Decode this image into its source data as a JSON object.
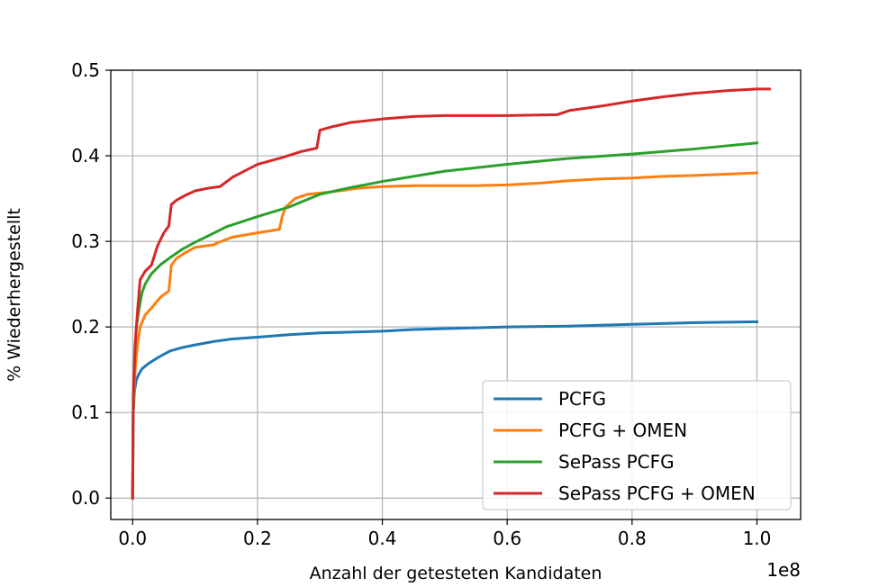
{
  "chart_data": {
    "type": "line",
    "title": "",
    "xlabel": "Anzahl der getesteten Kandidaten",
    "ylabel": "% Wiederhergestellt",
    "x_offset_label": "1e8",
    "xlim": [
      -0.035,
      1.07
    ],
    "ylim": [
      -0.025,
      0.5
    ],
    "x_ticks": [
      0.0,
      0.2,
      0.4,
      0.6,
      0.8,
      1.0
    ],
    "x_tick_labels": [
      "0.0",
      "0.2",
      "0.4",
      "0.6",
      "0.8",
      "1.0"
    ],
    "y_ticks": [
      0.0,
      0.1,
      0.2,
      0.3,
      0.4,
      0.5
    ],
    "y_tick_labels": [
      "0.0",
      "0.1",
      "0.2",
      "0.3",
      "0.4",
      "0.5"
    ],
    "grid": true,
    "legend_position": "bottom-right",
    "series": [
      {
        "name": "PCFG",
        "color": "#1f77b4",
        "points": [
          [
            0.0,
            0.0
          ],
          [
            0.0005,
            0.06
          ],
          [
            0.001,
            0.1
          ],
          [
            0.003,
            0.125
          ],
          [
            0.006,
            0.138
          ],
          [
            0.01,
            0.145
          ],
          [
            0.015,
            0.151
          ],
          [
            0.025,
            0.157
          ],
          [
            0.04,
            0.164
          ],
          [
            0.06,
            0.172
          ],
          [
            0.08,
            0.176
          ],
          [
            0.1,
            0.179
          ],
          [
            0.13,
            0.183
          ],
          [
            0.16,
            0.186
          ],
          [
            0.2,
            0.188
          ],
          [
            0.25,
            0.191
          ],
          [
            0.3,
            0.193
          ],
          [
            0.35,
            0.194
          ],
          [
            0.4,
            0.195
          ],
          [
            0.45,
            0.197
          ],
          [
            0.5,
            0.198
          ],
          [
            0.6,
            0.2
          ],
          [
            0.7,
            0.201
          ],
          [
            0.8,
            0.203
          ],
          [
            0.9,
            0.205
          ],
          [
            1.0,
            0.206
          ]
        ]
      },
      {
        "name": "PCFG + OMEN",
        "color": "#ff7f0e",
        "points": [
          [
            0.0,
            0.0
          ],
          [
            0.001,
            0.1
          ],
          [
            0.004,
            0.15
          ],
          [
            0.008,
            0.18
          ],
          [
            0.012,
            0.2
          ],
          [
            0.02,
            0.214
          ],
          [
            0.03,
            0.222
          ],
          [
            0.045,
            0.235
          ],
          [
            0.058,
            0.242
          ],
          [
            0.062,
            0.272
          ],
          [
            0.07,
            0.28
          ],
          [
            0.085,
            0.287
          ],
          [
            0.1,
            0.293
          ],
          [
            0.13,
            0.296
          ],
          [
            0.135,
            0.298
          ],
          [
            0.16,
            0.305
          ],
          [
            0.2,
            0.31
          ],
          [
            0.235,
            0.314
          ],
          [
            0.24,
            0.33
          ],
          [
            0.245,
            0.34
          ],
          [
            0.26,
            0.35
          ],
          [
            0.28,
            0.355
          ],
          [
            0.32,
            0.358
          ],
          [
            0.36,
            0.362
          ],
          [
            0.4,
            0.364
          ],
          [
            0.45,
            0.365
          ],
          [
            0.5,
            0.365
          ],
          [
            0.55,
            0.365
          ],
          [
            0.6,
            0.366
          ],
          [
            0.65,
            0.368
          ],
          [
            0.7,
            0.371
          ],
          [
            0.75,
            0.373
          ],
          [
            0.8,
            0.374
          ],
          [
            0.85,
            0.376
          ],
          [
            0.9,
            0.377
          ],
          [
            1.0,
            0.38
          ]
        ]
      },
      {
        "name": "SePass PCFG",
        "color": "#2ca02c",
        "points": [
          [
            0.0,
            0.0
          ],
          [
            0.001,
            0.1
          ],
          [
            0.003,
            0.16
          ],
          [
            0.006,
            0.2
          ],
          [
            0.01,
            0.22
          ],
          [
            0.015,
            0.24
          ],
          [
            0.02,
            0.25
          ],
          [
            0.03,
            0.262
          ],
          [
            0.045,
            0.273
          ],
          [
            0.06,
            0.281
          ],
          [
            0.08,
            0.291
          ],
          [
            0.1,
            0.299
          ],
          [
            0.12,
            0.306
          ],
          [
            0.15,
            0.317
          ],
          [
            0.2,
            0.329
          ],
          [
            0.25,
            0.34
          ],
          [
            0.3,
            0.355
          ],
          [
            0.35,
            0.363
          ],
          [
            0.4,
            0.37
          ],
          [
            0.45,
            0.376
          ],
          [
            0.5,
            0.382
          ],
          [
            0.6,
            0.39
          ],
          [
            0.7,
            0.397
          ],
          [
            0.8,
            0.402
          ],
          [
            0.9,
            0.408
          ],
          [
            1.0,
            0.415
          ]
        ]
      },
      {
        "name": "SePass PCFG + OMEN",
        "color": "#d62728",
        "points": [
          [
            0.0,
            0.0
          ],
          [
            0.001,
            0.12
          ],
          [
            0.004,
            0.18
          ],
          [
            0.008,
            0.22
          ],
          [
            0.012,
            0.255
          ],
          [
            0.02,
            0.265
          ],
          [
            0.03,
            0.272
          ],
          [
            0.04,
            0.295
          ],
          [
            0.05,
            0.31
          ],
          [
            0.058,
            0.318
          ],
          [
            0.062,
            0.343
          ],
          [
            0.07,
            0.348
          ],
          [
            0.085,
            0.354
          ],
          [
            0.1,
            0.359
          ],
          [
            0.12,
            0.362
          ],
          [
            0.14,
            0.364
          ],
          [
            0.16,
            0.375
          ],
          [
            0.2,
            0.39
          ],
          [
            0.24,
            0.398
          ],
          [
            0.27,
            0.405
          ],
          [
            0.295,
            0.409
          ],
          [
            0.3,
            0.43
          ],
          [
            0.32,
            0.434
          ],
          [
            0.35,
            0.439
          ],
          [
            0.4,
            0.443
          ],
          [
            0.45,
            0.446
          ],
          [
            0.5,
            0.447
          ],
          [
            0.6,
            0.447
          ],
          [
            0.68,
            0.448
          ],
          [
            0.7,
            0.453
          ],
          [
            0.75,
            0.458
          ],
          [
            0.8,
            0.464
          ],
          [
            0.85,
            0.469
          ],
          [
            0.9,
            0.473
          ],
          [
            0.95,
            0.476
          ],
          [
            1.0,
            0.478
          ],
          [
            1.02,
            0.478
          ]
        ]
      }
    ]
  }
}
